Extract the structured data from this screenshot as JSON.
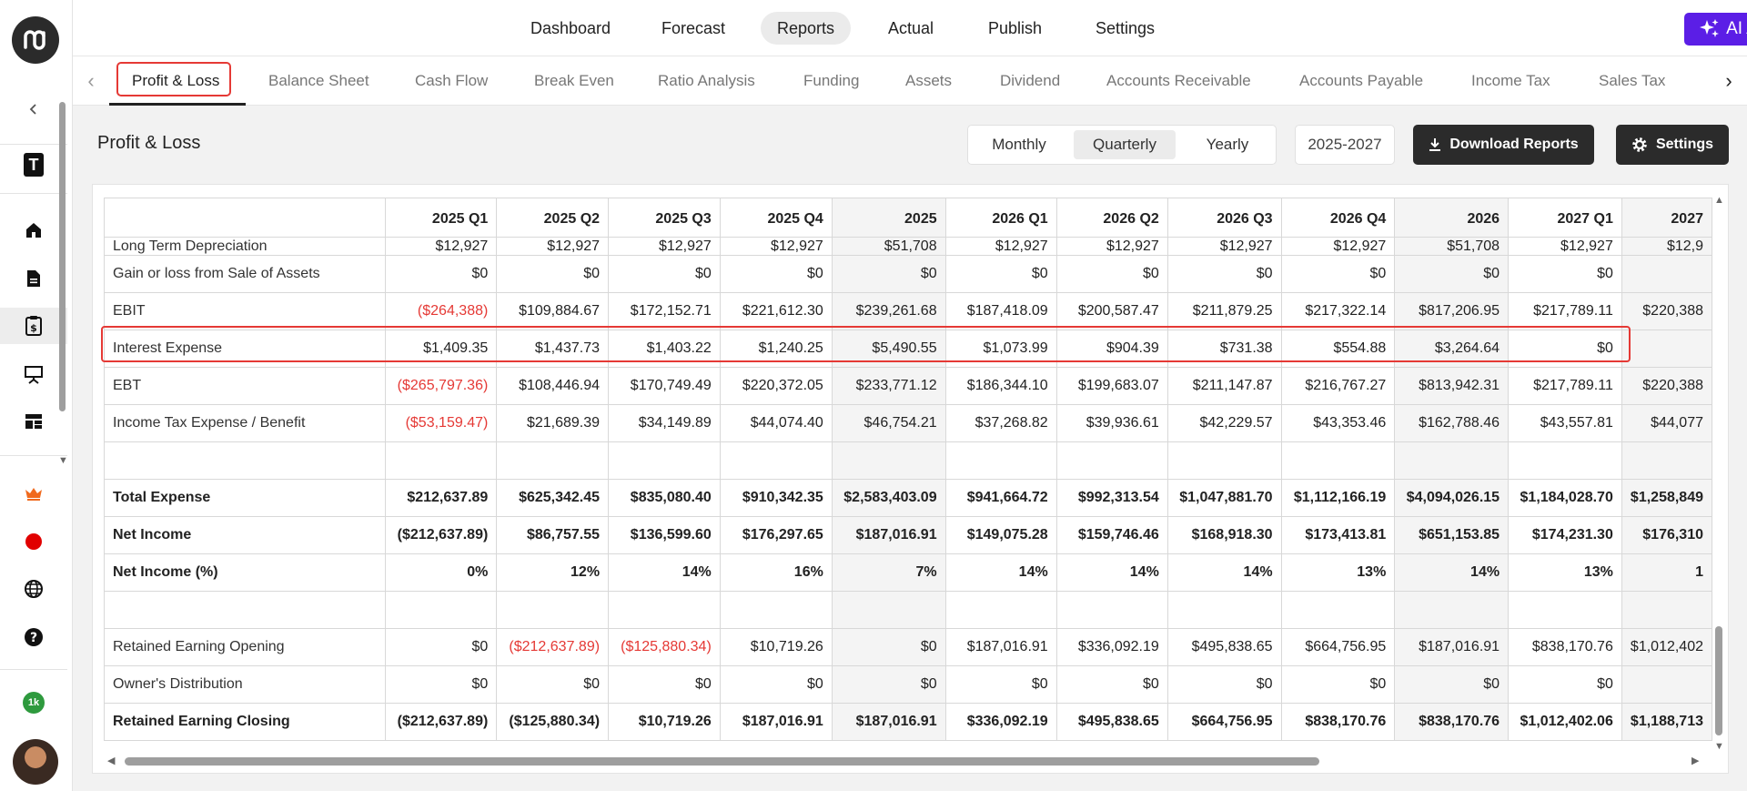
{
  "topnav": {
    "items": [
      {
        "label": "Dashboard"
      },
      {
        "label": "Forecast"
      },
      {
        "label": "Reports",
        "active": true
      },
      {
        "label": "Actual"
      },
      {
        "label": "Publish"
      },
      {
        "label": "Settings"
      }
    ],
    "ai_assist_label": "AI Assist",
    "accent_color": "#5b1ee6"
  },
  "sidebar": {
    "workspace_letter": "T",
    "badge": "1k",
    "icons": [
      "collapse-chevron-icon",
      "home-icon",
      "document-icon",
      "reports-clipboard-icon",
      "presentation-icon",
      "dashboard-grid-icon",
      "crown-icon",
      "record-dot-icon",
      "globe-icon",
      "help-icon"
    ]
  },
  "tabs": [
    {
      "label": "Profit & Loss",
      "active": true
    },
    {
      "label": "Balance Sheet"
    },
    {
      "label": "Cash Flow"
    },
    {
      "label": "Break Even"
    },
    {
      "label": "Ratio Analysis"
    },
    {
      "label": "Funding"
    },
    {
      "label": "Assets"
    },
    {
      "label": "Dividend"
    },
    {
      "label": "Accounts Receivable"
    },
    {
      "label": "Accounts Payable"
    },
    {
      "label": "Income Tax"
    },
    {
      "label": "Sales Tax"
    }
  ],
  "content": {
    "title": "Profit & Loss",
    "period_options": [
      {
        "label": "Monthly"
      },
      {
        "label": "Quarterly",
        "active": true
      },
      {
        "label": "Yearly"
      }
    ],
    "year_range": "2025-2027",
    "download_label": "Download Reports",
    "settings_label": "Settings"
  },
  "table": {
    "columns": [
      "2025 Q1",
      "2025 Q2",
      "2025 Q3",
      "2025 Q4",
      "2025",
      "2026 Q1",
      "2026 Q2",
      "2026 Q3",
      "2026 Q4",
      "2026",
      "2027 Q1",
      "2027"
    ],
    "rows": [
      {
        "label": "Long Term Depreciation",
        "values": [
          "$12,927",
          "$12,927",
          "$12,927",
          "$12,927",
          "$51,708",
          "$12,927",
          "$12,927",
          "$12,927",
          "$12,927",
          "$51,708",
          "$12,927",
          "$12,9"
        ]
      },
      {
        "label": "Gain or loss from Sale of Assets",
        "values": [
          "$0",
          "$0",
          "$0",
          "$0",
          "$0",
          "$0",
          "$0",
          "$0",
          "$0",
          "$0",
          "$0",
          ""
        ]
      },
      {
        "label": "EBIT",
        "values": [
          "($264,388)",
          "$109,884.67",
          "$172,152.71",
          "$221,612.30",
          "$239,261.68",
          "$187,418.09",
          "$200,587.47",
          "$211,879.25",
          "$217,322.14",
          "$817,206.95",
          "$217,789.11",
          "$220,388"
        ]
      },
      {
        "label": "Interest Expense",
        "values": [
          "$1,409.35",
          "$1,437.73",
          "$1,403.22",
          "$1,240.25",
          "$5,490.55",
          "$1,073.99",
          "$904.39",
          "$731.38",
          "$554.88",
          "$3,264.64",
          "$0",
          ""
        ]
      },
      {
        "label": "EBT",
        "values": [
          "($265,797.36)",
          "$108,446.94",
          "$170,749.49",
          "$220,372.05",
          "$233,771.12",
          "$186,344.10",
          "$199,683.07",
          "$211,147.87",
          "$216,767.27",
          "$813,942.31",
          "$217,789.11",
          "$220,388"
        ]
      },
      {
        "label": "Income Tax Expense / Benefit",
        "values": [
          "($53,159.47)",
          "$21,689.39",
          "$34,149.89",
          "$44,074.40",
          "$46,754.21",
          "$37,268.82",
          "$39,936.61",
          "$42,229.57",
          "$43,353.46",
          "$162,788.46",
          "$43,557.81",
          "$44,077"
        ]
      },
      {
        "label": "",
        "values": [
          "",
          "",
          "",
          "",
          "",
          "",
          "",
          "",
          "",
          "",
          "",
          ""
        ]
      },
      {
        "label": "Total Expense",
        "bold": true,
        "values": [
          "$212,637.89",
          "$625,342.45",
          "$835,080.40",
          "$910,342.35",
          "$2,583,403.09",
          "$941,664.72",
          "$992,313.54",
          "$1,047,881.70",
          "$1,112,166.19",
          "$4,094,026.15",
          "$1,184,028.70",
          "$1,258,849"
        ]
      },
      {
        "label": "Net Income",
        "bold": true,
        "values": [
          "($212,637.89)",
          "$86,757.55",
          "$136,599.60",
          "$176,297.65",
          "$187,016.91",
          "$149,075.28",
          "$159,746.46",
          "$168,918.30",
          "$173,413.81",
          "$651,153.85",
          "$174,231.30",
          "$176,310"
        ]
      },
      {
        "label": "Net Income (%)",
        "bold": true,
        "values": [
          "0%",
          "12%",
          "14%",
          "16%",
          "7%",
          "14%",
          "14%",
          "14%",
          "13%",
          "14%",
          "13%",
          "1"
        ]
      },
      {
        "label": "",
        "values": [
          "",
          "",
          "",
          "",
          "",
          "",
          "",
          "",
          "",
          "",
          "",
          ""
        ]
      },
      {
        "label": "Retained Earning Opening",
        "values": [
          "$0",
          "($212,637.89)",
          "($125,880.34)",
          "$10,719.26",
          "$0",
          "$187,016.91",
          "$336,092.19",
          "$495,838.65",
          "$664,756.95",
          "$187,016.91",
          "$838,170.76",
          "$1,012,402"
        ]
      },
      {
        "label": "Owner's Distribution",
        "values": [
          "$0",
          "$0",
          "$0",
          "$0",
          "$0",
          "$0",
          "$0",
          "$0",
          "$0",
          "$0",
          "$0",
          ""
        ]
      },
      {
        "label": "Retained Earning Closing",
        "bold": true,
        "values": [
          "($212,637.89)",
          "($125,880.34)",
          "$10,719.26",
          "$187,016.91",
          "$187,016.91",
          "$336,092.19",
          "$495,838.65",
          "$664,756.95",
          "$838,170.76",
          "$838,170.76",
          "$1,012,402.06",
          "$1,188,713"
        ]
      }
    ],
    "highlighted_row": "Interest Expense",
    "negative_color": "#e53935",
    "highlight_color": "#e53935"
  }
}
